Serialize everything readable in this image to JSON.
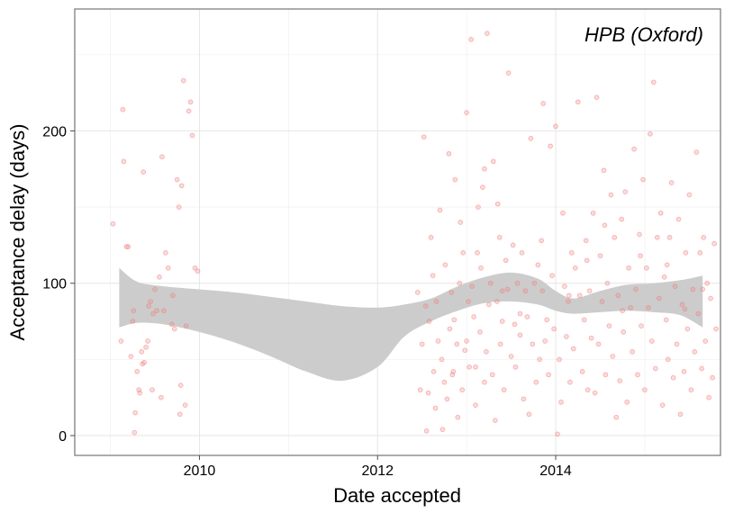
{
  "chart_data": {
    "type": "scatter",
    "title": "",
    "xlabel": "Date accepted",
    "ylabel": "Acceptance delay (days)",
    "annotation": "HPB (Oxford)",
    "x_ticks": [
      {
        "value": 2010,
        "label": "2010"
      },
      {
        "value": 2012,
        "label": "2012"
      },
      {
        "value": 2014,
        "label": "2014"
      }
    ],
    "y_ticks": [
      {
        "value": 0,
        "label": "0"
      },
      {
        "value": 100,
        "label": "100"
      },
      {
        "value": 200,
        "label": "200"
      }
    ],
    "xlim": [
      2008.6,
      2015.85
    ],
    "ylim": [
      -13,
      280
    ],
    "grid": true,
    "point_color": "#f08080",
    "band_color": "#cccccc",
    "smooth_band": {
      "x": [
        2009.1,
        2009.3,
        2009.6,
        2010.0,
        2010.4,
        2010.8,
        2011.2,
        2011.6,
        2012.0,
        2012.3,
        2012.6,
        2012.9,
        2013.2,
        2013.5,
        2013.8,
        2014.0,
        2014.2,
        2014.5,
        2014.8,
        2015.1,
        2015.4,
        2015.65
      ],
      "upper": [
        110,
        101,
        98,
        96,
        94,
        91,
        88,
        85,
        84,
        86,
        90,
        98,
        104,
        107,
        103,
        95,
        90,
        95,
        99,
        100,
        102,
        105
      ],
      "lower": [
        71,
        74,
        73,
        68,
        61,
        52,
        42,
        36,
        45,
        65,
        75,
        82,
        87,
        88,
        86,
        82,
        80,
        81,
        82,
        81,
        79,
        71
      ]
    },
    "points": [
      [
        2009.03,
        139
      ],
      [
        2009.12,
        62
      ],
      [
        2009.14,
        214
      ],
      [
        2009.18,
        124
      ],
      [
        2009.2,
        124
      ],
      [
        2009.23,
        52
      ],
      [
        2009.25,
        75
      ],
      [
        2009.26,
        82
      ],
      [
        2009.27,
        2
      ],
      [
        2009.28,
        15
      ],
      [
        2009.3,
        42
      ],
      [
        2009.32,
        30
      ],
      [
        2009.35,
        55
      ],
      [
        2009.36,
        47
      ],
      [
        2009.37,
        173
      ],
      [
        2009.38,
        48
      ],
      [
        2009.4,
        58
      ],
      [
        2009.42,
        62
      ],
      [
        2009.45,
        88
      ],
      [
        2009.48,
        80
      ],
      [
        2009.5,
        96
      ],
      [
        2009.52,
        82
      ],
      [
        2009.55,
        104
      ],
      [
        2009.58,
        183
      ],
      [
        2009.6,
        82
      ],
      [
        2009.62,
        120
      ],
      [
        2009.65,
        110
      ],
      [
        2009.7,
        92
      ],
      [
        2009.72,
        70
      ],
      [
        2009.75,
        168
      ],
      [
        2009.77,
        150
      ],
      [
        2009.78,
        14
      ],
      [
        2009.8,
        164
      ],
      [
        2009.82,
        233
      ],
      [
        2009.85,
        72
      ],
      [
        2009.88,
        213
      ],
      [
        2009.9,
        219
      ],
      [
        2009.92,
        197
      ],
      [
        2009.95,
        110
      ],
      [
        2009.98,
        108
      ],
      [
        2009.15,
        180
      ],
      [
        2009.33,
        28
      ],
      [
        2009.43,
        85
      ],
      [
        2009.47,
        30
      ],
      [
        2009.57,
        25
      ],
      [
        2009.69,
        73
      ],
      [
        2009.79,
        33
      ],
      [
        2009.84,
        20
      ],
      [
        2012.45,
        94
      ],
      [
        2012.48,
        30
      ],
      [
        2012.5,
        60
      ],
      [
        2012.52,
        196
      ],
      [
        2012.54,
        85
      ],
      [
        2012.55,
        3
      ],
      [
        2012.57,
        28
      ],
      [
        2012.58,
        75
      ],
      [
        2012.6,
        130
      ],
      [
        2012.62,
        105
      ],
      [
        2012.63,
        42
      ],
      [
        2012.65,
        18
      ],
      [
        2012.66,
        88
      ],
      [
        2012.68,
        62
      ],
      [
        2012.7,
        148
      ],
      [
        2012.72,
        50
      ],
      [
        2012.73,
        4
      ],
      [
        2012.75,
        35
      ],
      [
        2012.76,
        112
      ],
      [
        2012.78,
        24
      ],
      [
        2012.8,
        185
      ],
      [
        2012.81,
        70
      ],
      [
        2012.83,
        94
      ],
      [
        2012.84,
        40
      ],
      [
        2012.86,
        76
      ],
      [
        2012.87,
        168
      ],
      [
        2012.89,
        60
      ],
      [
        2012.9,
        12
      ],
      [
        2012.92,
        100
      ],
      [
        2012.93,
        140
      ],
      [
        2012.95,
        30
      ],
      [
        2012.96,
        120
      ],
      [
        2012.98,
        56
      ],
      [
        2013.0,
        212
      ],
      [
        2013.02,
        88
      ],
      [
        2013.03,
        45
      ],
      [
        2013.05,
        260
      ],
      [
        2013.06,
        98
      ],
      [
        2013.08,
        78
      ],
      [
        2013.1,
        20
      ],
      [
        2013.12,
        120
      ],
      [
        2013.13,
        150
      ],
      [
        2013.15,
        68
      ],
      [
        2013.16,
        110
      ],
      [
        2013.18,
        163
      ],
      [
        2013.2,
        35
      ],
      [
        2013.22,
        55
      ],
      [
        2013.23,
        264
      ],
      [
        2013.25,
        86
      ],
      [
        2013.27,
        100
      ],
      [
        2013.29,
        40
      ],
      [
        2013.3,
        180
      ],
      [
        2013.32,
        10
      ],
      [
        2013.34,
        88
      ],
      [
        2013.35,
        152
      ],
      [
        2013.37,
        130
      ],
      [
        2013.38,
        60
      ],
      [
        2013.4,
        75
      ],
      [
        2013.42,
        30
      ],
      [
        2013.44,
        115
      ],
      [
        2013.46,
        96
      ],
      [
        2013.47,
        238
      ],
      [
        2013.5,
        52
      ],
      [
        2013.52,
        125
      ],
      [
        2013.54,
        73
      ],
      [
        2013.55,
        45
      ],
      [
        2013.57,
        100
      ],
      [
        2013.6,
        66
      ],
      [
        2013.62,
        120
      ],
      [
        2013.64,
        24
      ],
      [
        2013.66,
        95
      ],
      [
        2013.68,
        78
      ],
      [
        2013.7,
        14
      ],
      [
        2013.72,
        195
      ],
      [
        2013.74,
        60
      ],
      [
        2013.76,
        100
      ],
      [
        2013.78,
        35
      ],
      [
        2013.8,
        112
      ],
      [
        2013.82,
        50
      ],
      [
        2013.84,
        128
      ],
      [
        2013.86,
        218
      ],
      [
        2013.88,
        62
      ],
      [
        2013.9,
        76
      ],
      [
        2013.92,
        40
      ],
      [
        2013.94,
        190
      ],
      [
        2013.96,
        105
      ],
      [
        2013.98,
        70
      ],
      [
        2014.0,
        203
      ],
      [
        2014.02,
        1
      ],
      [
        2014.04,
        50
      ],
      [
        2014.06,
        22
      ],
      [
        2014.08,
        146
      ],
      [
        2014.1,
        98
      ],
      [
        2014.12,
        65
      ],
      [
        2014.14,
        88
      ],
      [
        2014.16,
        35
      ],
      [
        2014.18,
        120
      ],
      [
        2014.2,
        57
      ],
      [
        2014.22,
        110
      ],
      [
        2014.25,
        219
      ],
      [
        2014.27,
        92
      ],
      [
        2014.3,
        42
      ],
      [
        2014.32,
        76
      ],
      [
        2014.34,
        128
      ],
      [
        2014.36,
        30
      ],
      [
        2014.38,
        95
      ],
      [
        2014.4,
        64
      ],
      [
        2014.42,
        146
      ],
      [
        2014.44,
        28
      ],
      [
        2014.46,
        222
      ],
      [
        2014.48,
        60
      ],
      [
        2014.5,
        118
      ],
      [
        2014.52,
        88
      ],
      [
        2014.54,
        174
      ],
      [
        2014.56,
        40
      ],
      [
        2014.58,
        100
      ],
      [
        2014.6,
        72
      ],
      [
        2014.62,
        158
      ],
      [
        2014.64,
        52
      ],
      [
        2014.66,
        130
      ],
      [
        2014.68,
        12
      ],
      [
        2014.7,
        92
      ],
      [
        2014.72,
        36
      ],
      [
        2014.74,
        142
      ],
      [
        2014.76,
        68
      ],
      [
        2014.78,
        160
      ],
      [
        2014.8,
        22
      ],
      [
        2014.82,
        110
      ],
      [
        2014.84,
        84
      ],
      [
        2014.86,
        55
      ],
      [
        2014.88,
        188
      ],
      [
        2014.9,
        96
      ],
      [
        2014.92,
        40
      ],
      [
        2014.94,
        132
      ],
      [
        2014.96,
        72
      ],
      [
        2014.98,
        168
      ],
      [
        2015.0,
        30
      ],
      [
        2015.02,
        110
      ],
      [
        2015.04,
        84
      ],
      [
        2015.06,
        198
      ],
      [
        2015.08,
        62
      ],
      [
        2015.1,
        232
      ],
      [
        2015.12,
        44
      ],
      [
        2015.14,
        130
      ],
      [
        2015.16,
        90
      ],
      [
        2015.18,
        146
      ],
      [
        2015.2,
        20
      ],
      [
        2015.22,
        104
      ],
      [
        2015.24,
        76
      ],
      [
        2015.26,
        50
      ],
      [
        2015.28,
        130
      ],
      [
        2015.3,
        166
      ],
      [
        2015.32,
        38
      ],
      [
        2015.34,
        98
      ],
      [
        2015.36,
        60
      ],
      [
        2015.38,
        142
      ],
      [
        2015.4,
        14
      ],
      [
        2015.42,
        86
      ],
      [
        2015.44,
        42
      ],
      [
        2015.46,
        120
      ],
      [
        2015.48,
        70
      ],
      [
        2015.5,
        158
      ],
      [
        2015.52,
        30
      ],
      [
        2015.54,
        96
      ],
      [
        2015.56,
        55
      ],
      [
        2015.58,
        186
      ],
      [
        2015.6,
        80
      ],
      [
        2015.62,
        120
      ],
      [
        2015.64,
        44
      ],
      [
        2015.66,
        130
      ],
      [
        2015.68,
        62
      ],
      [
        2015.7,
        100
      ],
      [
        2015.72,
        25
      ],
      [
        2015.74,
        90
      ],
      [
        2015.76,
        38
      ],
      [
        2015.78,
        126
      ],
      [
        2015.8,
        70
      ],
      [
        2012.85,
        42
      ],
      [
        2013.0,
        62
      ],
      [
        2013.1,
        45
      ],
      [
        2013.2,
        175
      ],
      [
        2013.4,
        95
      ],
      [
        2013.6,
        80
      ],
      [
        2013.85,
        95
      ],
      [
        2014.15,
        92
      ],
      [
        2014.35,
        115
      ],
      [
        2014.55,
        138
      ],
      [
        2014.75,
        82
      ],
      [
        2014.95,
        118
      ],
      [
        2015.25,
        112
      ],
      [
        2015.45,
        83
      ],
      [
        2015.65,
        96
      ]
    ]
  }
}
